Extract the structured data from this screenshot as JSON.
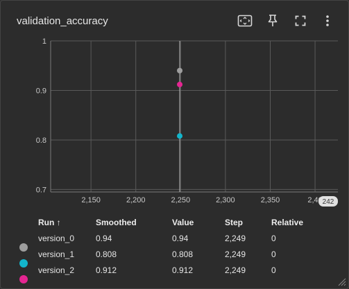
{
  "header": {
    "title": "validation_accuracy"
  },
  "toolbar": {
    "icons": [
      "fit-domain-icon",
      "pin-icon",
      "fullscreen-icon",
      "more-vert-icon"
    ]
  },
  "chart_data": {
    "type": "scatter",
    "x_ticks": [
      "2,150",
      "2,200",
      "2,250",
      "2,300",
      "2,350",
      "2,40"
    ],
    "y_ticks": [
      "0.7",
      "0.8",
      "0.9",
      "1"
    ],
    "x_end_badge": "242",
    "xlim": [
      2105,
      2410
    ],
    "ylim": [
      0.695,
      1.0
    ],
    "grid": true,
    "series": [
      {
        "name": "version_0",
        "x": 2249,
        "y": 0.94,
        "color": "#9e9e9e"
      },
      {
        "name": "version_1",
        "x": 2249,
        "y": 0.808,
        "color": "#12b5cb"
      },
      {
        "name": "version_2",
        "x": 2249,
        "y": 0.912,
        "color": "#e52592"
      }
    ]
  },
  "table": {
    "headers": {
      "run": "Run ↑",
      "smoothed": "Smoothed",
      "value": "Value",
      "step": "Step",
      "relative": "Relative"
    },
    "rows": [
      {
        "run": "version_0",
        "smoothed": "0.94",
        "value": "0.94",
        "step": "2,249",
        "relative": "0",
        "color": "#9e9e9e"
      },
      {
        "run": "version_1",
        "smoothed": "0.808",
        "value": "0.808",
        "step": "2,249",
        "relative": "0",
        "color": "#12b5cb"
      },
      {
        "run": "version_2",
        "smoothed": "0.912",
        "value": "0.912",
        "step": "2,249",
        "relative": "0",
        "color": "#e52592"
      }
    ]
  }
}
